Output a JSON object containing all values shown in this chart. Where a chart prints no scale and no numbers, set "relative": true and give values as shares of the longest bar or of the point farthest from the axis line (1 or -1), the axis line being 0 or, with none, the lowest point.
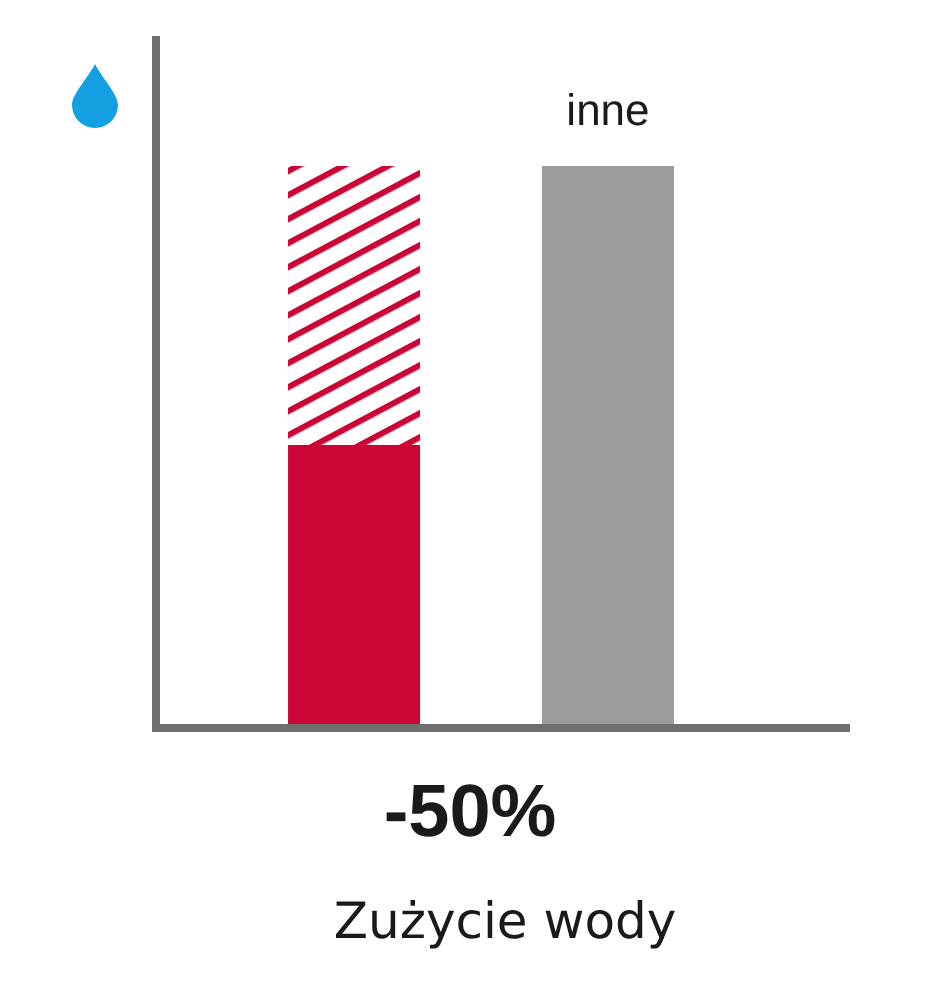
{
  "chart_data": {
    "type": "bar",
    "title": "Zużycie wody",
    "categories": [
      null,
      "inne"
    ],
    "stacked": true,
    "relative": true,
    "series": [
      {
        "color": "#cc0537",
        "values": [
          0.5,
          null
        ]
      },
      {
        "color": "#cc0537",
        "values": [
          0.5,
          null
        ]
      },
      {
        "color": "#9b9b9b",
        "values": [
          null,
          1
        ]
      }
    ],
    "annotations": [
      "-50%"
    ]
  }
}
